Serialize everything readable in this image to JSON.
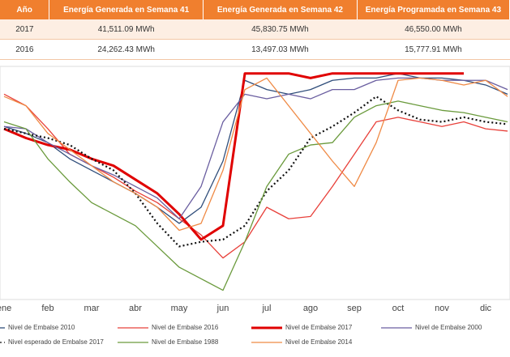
{
  "table": {
    "header": [
      "Año",
      "Energía Generada en Semana 41",
      "Energía Generada en Semana 42",
      "Energía Programada en Semana 43"
    ],
    "rows": [
      [
        "2017",
        "41,511.09 MWh",
        "45,830.75 MWh",
        "46,550.00 MWh"
      ],
      [
        "2016",
        "24,262.43 MWh",
        "13,497.03 MWh",
        "15,777.91 MWh"
      ]
    ]
  },
  "chart_data": {
    "type": "line",
    "categories": [
      "ene",
      null,
      "feb",
      null,
      "mar",
      null,
      "abr",
      null,
      "may",
      null,
      "jun",
      null,
      "jul",
      null,
      "ago",
      null,
      "sep",
      null,
      "oct",
      null,
      "nov",
      null,
      "dic",
      null
    ],
    "ylim": [
      0,
      100
    ],
    "series": [
      {
        "name": "Nivel de Embalse 2010",
        "color": "#2f4d7a",
        "values": [
          75,
          72,
          68,
          61,
          56,
          51,
          46,
          40,
          33,
          40,
          60,
          95,
          91,
          89,
          91,
          95,
          96,
          96,
          98,
          96,
          96,
          95,
          93,
          89
        ]
      },
      {
        "name": "Nivel de Embalse 2016",
        "color": "#e8403a",
        "values": [
          89,
          84,
          74,
          63,
          58,
          53,
          47,
          42,
          35,
          28,
          18,
          25,
          40,
          35,
          36,
          49,
          63,
          77,
          79,
          77,
          75,
          77,
          74,
          73
        ]
      },
      {
        "name": "Nivel de Embalse 2017",
        "color": "#e00000",
        "width": 3,
        "values": [
          74,
          70,
          67,
          65,
          61,
          58,
          52,
          46,
          37,
          26,
          32,
          98,
          98,
          98,
          96,
          98,
          98,
          98,
          98,
          98,
          98,
          98,
          null,
          null
        ]
      },
      {
        "name": "Nivel de Embalse 2000",
        "color": "#6a5ea0",
        "values": [
          75,
          74,
          68,
          63,
          58,
          54,
          49,
          44,
          35,
          49,
          77,
          89,
          87,
          89,
          87,
          91,
          91,
          95,
          96,
          96,
          95,
          95,
          95,
          91
        ]
      },
      {
        "name": "Nivel esperado de Embalse 2017",
        "color": "#111111",
        "dotted": true,
        "values": [
          74,
          72,
          70,
          67,
          61,
          56,
          46,
          33,
          23,
          25,
          26,
          32,
          47,
          56,
          70,
          75,
          81,
          88,
          82,
          78,
          77,
          79,
          77,
          76
        ]
      },
      {
        "name": "Nivel de Embalse 1988",
        "color": "#6a9a3c",
        "values": [
          77,
          74,
          61,
          51,
          42,
          37,
          32,
          23,
          14,
          9,
          4,
          25,
          49,
          63,
          67,
          68,
          79,
          84,
          86,
          84,
          82,
          81,
          79,
          77
        ]
      },
      {
        "name": "Nivel de Embalse 2014",
        "color": "#ef8a45",
        "values": [
          88,
          84,
          72,
          65,
          58,
          51,
          46,
          40,
          30,
          33,
          56,
          91,
          96,
          84,
          72,
          60,
          49,
          68,
          95,
          96,
          95,
          93,
          95,
          88
        ]
      }
    ]
  }
}
